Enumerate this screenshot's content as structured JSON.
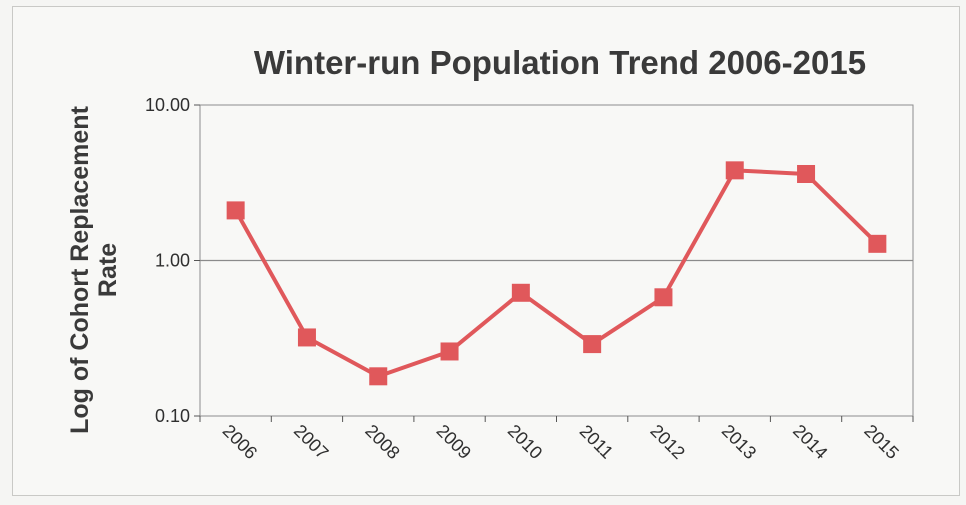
{
  "chart_data": {
    "type": "line",
    "title": "Winter-run Population Trend 2006-2015",
    "ylabel": [
      "Log of Cohort Replacement",
      "Rate"
    ],
    "xlabel": "",
    "yscale": "log",
    "ylim": [
      0.1,
      10
    ],
    "y_ticks": [
      "0.10",
      "1.00",
      "10.00"
    ],
    "y_tick_values": [
      0.1,
      1,
      10
    ],
    "grid": "horizontal major lines",
    "legend": "none",
    "categories": [
      "2006",
      "2007",
      "2008",
      "2009",
      "2010",
      "2011",
      "2012",
      "2013",
      "2014",
      "2015"
    ],
    "series": [
      {
        "values": [
          2.1,
          0.32,
          0.18,
          0.26,
          0.62,
          0.29,
          0.58,
          3.8,
          3.6,
          1.28
        ],
        "color": "#e0585b",
        "marker": "square"
      }
    ]
  }
}
